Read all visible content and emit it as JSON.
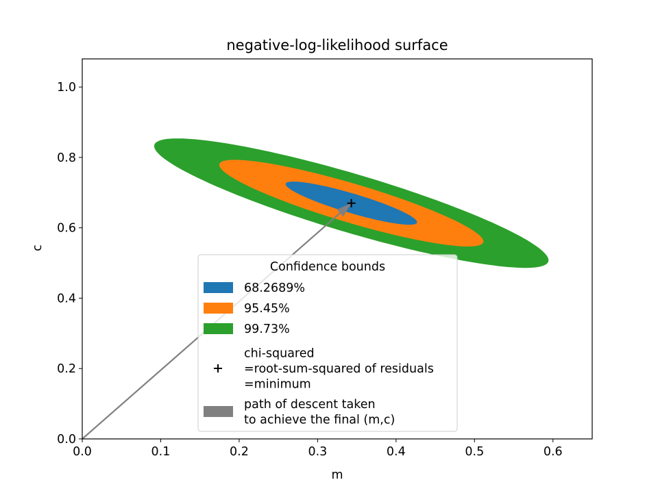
{
  "chart_data": {
    "type": "contour",
    "title": "negative-log-likelihood surface",
    "xlabel": "m",
    "ylabel": "c",
    "xlim": [
      0.0,
      0.65
    ],
    "ylim": [
      0.0,
      1.08
    ],
    "x_ticks": [
      "0.0",
      "0.1",
      "0.2",
      "0.3",
      "0.4",
      "0.5",
      "0.6"
    ],
    "y_ticks": [
      "0.0",
      "0.2",
      "0.4",
      "0.6",
      "0.8",
      "1.0"
    ],
    "grid": false,
    "minimum": {
      "m": 0.343,
      "c": 0.67
    },
    "regions": [
      {
        "name": "99.73%",
        "color": "#2ca02c",
        "half_axes": [
          0.303,
          0.072
        ],
        "angle_deg": -35.1
      },
      {
        "name": "95.45%",
        "color": "#ff7f0e",
        "half_axes": [
          0.203,
          0.048
        ],
        "angle_deg": -35.1
      },
      {
        "name": "68.2689%",
        "color": "#1f77b4",
        "half_axes": [
          0.101,
          0.024
        ],
        "angle_deg": -35.1
      }
    ],
    "descent_path": {
      "from": {
        "m": 0.0,
        "c": 0.0
      },
      "to": {
        "m": 0.343,
        "c": 0.67
      },
      "color": "#808080"
    },
    "legend": {
      "title": "Confidence bounds",
      "location": "lower-center",
      "entries": [
        {
          "kind": "patch",
          "color": "#1f77b4",
          "lines": [
            "68.2689%"
          ]
        },
        {
          "kind": "patch",
          "color": "#ff7f0e",
          "lines": [
            "95.45%"
          ]
        },
        {
          "kind": "patch",
          "color": "#2ca02c",
          "lines": [
            "99.73%"
          ]
        },
        {
          "kind": "marker",
          "marker": "+",
          "color": "#000000",
          "lines": [
            "chi-squared",
            "=root-sum-squared of residuals",
            "=minimum"
          ]
        },
        {
          "kind": "patch",
          "color": "#808080",
          "lines": [
            "path of descent taken",
            "to achieve the final (m,c)"
          ]
        }
      ]
    }
  }
}
